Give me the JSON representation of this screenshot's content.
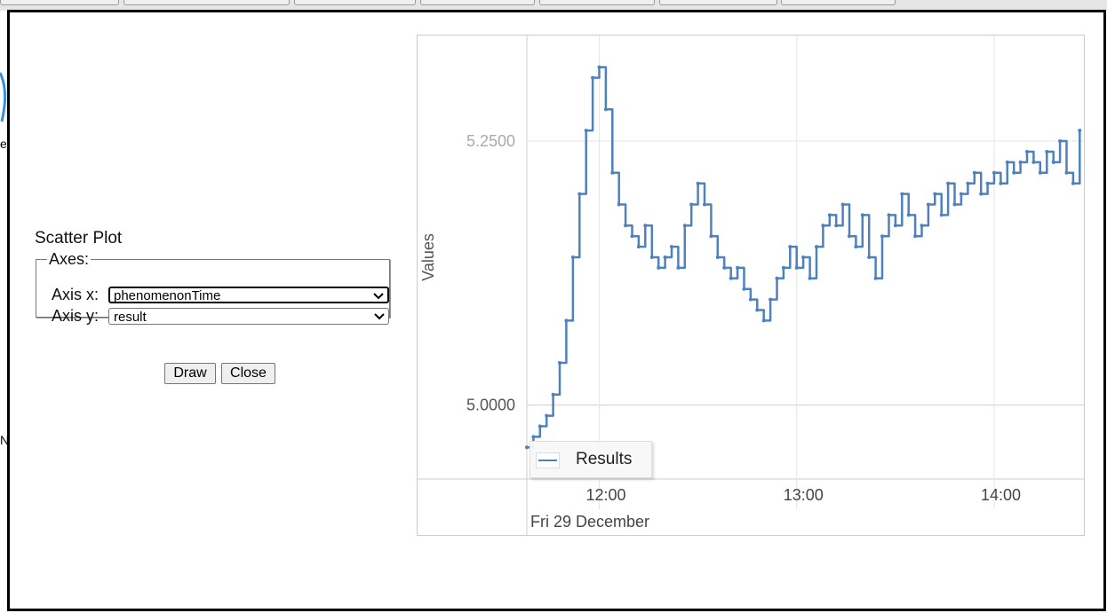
{
  "dialog": {
    "panel_title": "Scatter Plot",
    "axes_legend": "Axes:",
    "axis_x_label": "Axis x:",
    "axis_x_value": "phenomenonTime",
    "axis_y_label": "Axis y:",
    "axis_y_value": "result",
    "draw_label": "Draw",
    "close_label": "Close"
  },
  "background_fragments": [
    "er",
    "N"
  ],
  "chart_data": {
    "type": "line",
    "title": "",
    "xlabel": "Fri 29 December",
    "ylabel": "Values",
    "x_tick_labels": [
      "12:00",
      "13:00",
      "14:00"
    ],
    "y_tick_labels": [
      "5.0000",
      "5.2500"
    ],
    "ylim": [
      4.93,
      5.35
    ],
    "xlim": [
      "11:38",
      "14:27"
    ],
    "grid": true,
    "legend_position": "bottom-left",
    "series": [
      {
        "name": "Results",
        "color": "#4e81bd",
        "x": [
          "11:38",
          "11:40",
          "11:42",
          "11:44",
          "11:46",
          "11:48",
          "11:50",
          "11:52",
          "11:54",
          "11:56",
          "11:58",
          "12:00",
          "12:02",
          "12:04",
          "12:06",
          "12:08",
          "12:10",
          "12:12",
          "12:14",
          "12:16",
          "12:18",
          "12:20",
          "12:22",
          "12:24",
          "12:26",
          "12:28",
          "12:30",
          "12:32",
          "12:34",
          "12:36",
          "12:38",
          "12:40",
          "12:42",
          "12:44",
          "12:46",
          "12:48",
          "12:50",
          "12:52",
          "12:54",
          "12:56",
          "12:58",
          "13:00",
          "13:02",
          "13:04",
          "13:06",
          "13:08",
          "13:10",
          "13:12",
          "13:14",
          "13:16",
          "13:18",
          "13:20",
          "13:22",
          "13:24",
          "13:26",
          "13:28",
          "13:30",
          "13:32",
          "13:34",
          "13:36",
          "13:38",
          "13:40",
          "13:42",
          "13:44",
          "13:46",
          "13:48",
          "13:50",
          "13:52",
          "13:54",
          "13:56",
          "13:58",
          "14:00",
          "14:02",
          "14:04",
          "14:06",
          "14:08",
          "14:10",
          "14:12",
          "14:14",
          "14:16",
          "14:18",
          "14:20",
          "14:22",
          "14:24",
          "14:26"
        ],
        "values": [
          4.96,
          4.97,
          4.98,
          4.99,
          5.01,
          5.04,
          5.08,
          5.14,
          5.2,
          5.26,
          5.31,
          5.32,
          5.28,
          5.22,
          5.19,
          5.17,
          5.16,
          5.15,
          5.17,
          5.14,
          5.13,
          5.14,
          5.15,
          5.13,
          5.17,
          5.19,
          5.21,
          5.19,
          5.16,
          5.14,
          5.13,
          5.12,
          5.13,
          5.11,
          5.1,
          5.09,
          5.08,
          5.1,
          5.12,
          5.13,
          5.15,
          5.13,
          5.14,
          5.12,
          5.15,
          5.17,
          5.18,
          5.17,
          5.19,
          5.16,
          5.15,
          5.18,
          5.14,
          5.12,
          5.16,
          5.18,
          5.17,
          5.2,
          5.18,
          5.16,
          5.17,
          5.19,
          5.2,
          5.18,
          5.21,
          5.19,
          5.2,
          5.21,
          5.22,
          5.2,
          5.21,
          5.22,
          5.21,
          5.23,
          5.22,
          5.23,
          5.24,
          5.23,
          5.22,
          5.24,
          5.23,
          5.25,
          5.22,
          5.21,
          5.26
        ]
      }
    ]
  }
}
